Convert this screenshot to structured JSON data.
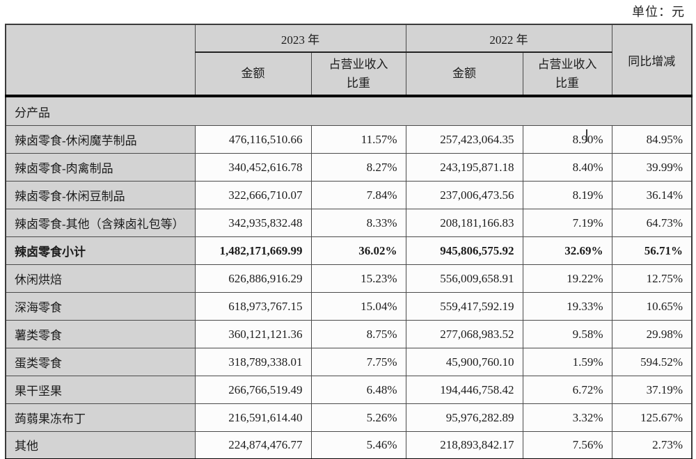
{
  "unit_label": "单位：元",
  "table": {
    "header": {
      "year_2023": "2023 年",
      "year_2022": "2022 年",
      "amount_label": "金额",
      "ratio_label_line1": "占营业收入",
      "ratio_label_line2": "比重",
      "yoy_label": "同比增减"
    },
    "section_label": "分产品",
    "rows": [
      {
        "name": "辣卤零食-休闲魔芋制品",
        "amount_2023": "476,116,510.66",
        "ratio_2023": "11.57%",
        "amount_2022": "257,423,064.35",
        "ratio_2022": "8.90%",
        "yoy": "84.95%",
        "bold": false
      },
      {
        "name": "辣卤零食-肉禽制品",
        "amount_2023": "340,452,616.78",
        "ratio_2023": "8.27%",
        "amount_2022": "243,195,871.18",
        "ratio_2022": "8.40%",
        "yoy": "39.99%",
        "bold": false
      },
      {
        "name": "辣卤零食-休闲豆制品",
        "amount_2023": "322,666,710.07",
        "ratio_2023": "7.84%",
        "amount_2022": "237,006,473.56",
        "ratio_2022": "8.19%",
        "yoy": "36.14%",
        "bold": false
      },
      {
        "name": "辣卤零食-其他（含辣卤礼包等）",
        "amount_2023": "342,935,832.48",
        "ratio_2023": "8.33%",
        "amount_2022": "208,181,166.83",
        "ratio_2022": "7.19%",
        "yoy": "64.73%",
        "bold": false
      },
      {
        "name": "辣卤零食小计",
        "amount_2023": "1,482,171,669.99",
        "ratio_2023": "36.02%",
        "amount_2022": "945,806,575.92",
        "ratio_2022": "32.69%",
        "yoy": "56.71%",
        "bold": true
      },
      {
        "name": "休闲烘焙",
        "amount_2023": "626,886,916.29",
        "ratio_2023": "15.23%",
        "amount_2022": "556,009,658.91",
        "ratio_2022": "19.22%",
        "yoy": "12.75%",
        "bold": false
      },
      {
        "name": "深海零食",
        "amount_2023": "618,973,767.15",
        "ratio_2023": "15.04%",
        "amount_2022": "559,417,592.19",
        "ratio_2022": "19.33%",
        "yoy": "10.65%",
        "bold": false
      },
      {
        "name": "薯类零食",
        "amount_2023": "360,121,121.36",
        "ratio_2023": "8.75%",
        "amount_2022": "277,068,983.52",
        "ratio_2022": "9.58%",
        "yoy": "29.98%",
        "bold": false
      },
      {
        "name": "蛋类零食",
        "amount_2023": "318,789,338.01",
        "ratio_2023": "7.75%",
        "amount_2022": "45,900,760.10",
        "ratio_2022": "1.59%",
        "yoy": "594.52%",
        "bold": false
      },
      {
        "name": "果干坚果",
        "amount_2023": "266,766,519.49",
        "ratio_2023": "6.48%",
        "amount_2022": "194,446,758.42",
        "ratio_2022": "6.72%",
        "yoy": "37.19%",
        "bold": false
      },
      {
        "name": "蒟蒻果冻布丁",
        "amount_2023": "216,591,614.40",
        "ratio_2023": "5.26%",
        "amount_2022": "95,976,282.89",
        "ratio_2022": "3.32%",
        "yoy": "125.67%",
        "bold": false
      },
      {
        "name": "其他",
        "amount_2023": "224,874,476.77",
        "ratio_2023": "5.46%",
        "amount_2022": "218,893,842.17",
        "ratio_2022": "7.56%",
        "yoy": "2.73%",
        "bold": false
      }
    ]
  }
}
